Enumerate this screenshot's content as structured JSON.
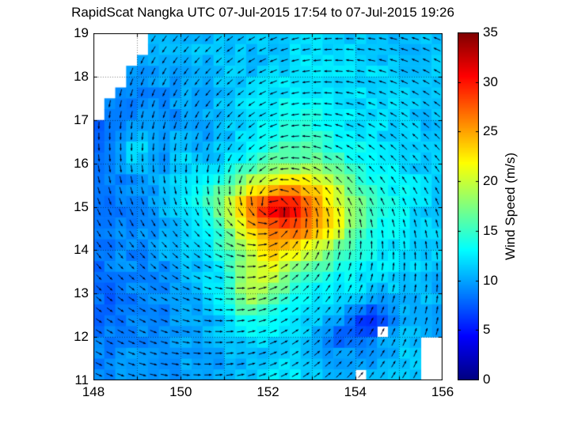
{
  "title": "RapidScat Nangka UTC 07-Jul-2015 17:54 to 07-Jul-2015 19:26",
  "colors": {
    "background": "#ffffff",
    "axis": "#000000",
    "arrow": "#00001e",
    "grid_dots": "rgba(0,0,0,0.5)",
    "no_data": "#ffffff"
  },
  "chart_data": {
    "type": "heatmap",
    "title": "RapidScat Nangka UTC 07-Jul-2015 17:54 to 07-Jul-2015 19:26",
    "xlabel": "",
    "ylabel": "",
    "x_axis": {
      "min": 148,
      "max": 156,
      "grid_step": 1,
      "tick_label_values": [
        148,
        150,
        152,
        154,
        156
      ]
    },
    "y_axis": {
      "min": 11,
      "max": 19,
      "grid_step": 1,
      "tick_label_values": [
        11,
        12,
        13,
        14,
        15,
        16,
        17,
        18,
        19
      ]
    },
    "colorbar": {
      "label": "Wind Speed (m/s)",
      "min": 0,
      "max": 35,
      "tick_values": [
        0,
        5,
        10,
        15,
        20,
        25,
        30,
        35
      ],
      "colormap": "jet"
    },
    "wind_speed_grid": {
      "units": "m/s",
      "lon_start": 148,
      "lon_step": 0.5,
      "lat_start": 19,
      "lat_step": -0.5,
      "values": [
        [
          null,
          null,
          null,
          11,
          11,
          11,
          11,
          11,
          11,
          11,
          12,
          12,
          11,
          11,
          11,
          11,
          11
        ],
        [
          null,
          null,
          10,
          10,
          10,
          11,
          11,
          11,
          11,
          12,
          12,
          12,
          12,
          11,
          11,
          11,
          11
        ],
        [
          null,
          9,
          10,
          10,
          10,
          10,
          11,
          11,
          12,
          12,
          12,
          12,
          12,
          12,
          11,
          11,
          11
        ],
        [
          null,
          9,
          9,
          9,
          10,
          10,
          11,
          12,
          12,
          13,
          13,
          13,
          12,
          12,
          12,
          11,
          11
        ],
        [
          8,
          8,
          9,
          9,
          9,
          10,
          11,
          12,
          13,
          14,
          14,
          13,
          12,
          12,
          12,
          11,
          11
        ],
        [
          8,
          9,
          12,
          10,
          12,
          10,
          11,
          12,
          14,
          15,
          15,
          14,
          13,
          12,
          12,
          11,
          11
        ],
        [
          9,
          9,
          12,
          9,
          12,
          11,
          12,
          14,
          16,
          17,
          17,
          16,
          14,
          13,
          12,
          11,
          11
        ],
        [
          8,
          9,
          9,
          10,
          12,
          14,
          16,
          20,
          22,
          24,
          23,
          20,
          16,
          14,
          13,
          12,
          11
        ],
        [
          8,
          8,
          9,
          10,
          12,
          14,
          18,
          26,
          31,
          33,
          27,
          22,
          18,
          14,
          13,
          12,
          11
        ],
        [
          8,
          9,
          9,
          10,
          11,
          13,
          16,
          23,
          27,
          28,
          26,
          22,
          17,
          14,
          13,
          12,
          11
        ],
        [
          8,
          9,
          9,
          10,
          11,
          12,
          15,
          18,
          24,
          23,
          20,
          17,
          14,
          13,
          12,
          12,
          11
        ],
        [
          8,
          9,
          9,
          9,
          10,
          11,
          13,
          19,
          21,
          17,
          15,
          14,
          13,
          12,
          12,
          11,
          11
        ],
        [
          8,
          8,
          9,
          9,
          10,
          11,
          14,
          20,
          18,
          15,
          13,
          12,
          12,
          11,
          11,
          11,
          10
        ],
        [
          8,
          8,
          9,
          9,
          10,
          10,
          12,
          15,
          14,
          13,
          12,
          11,
          7,
          6,
          10,
          10,
          10
        ],
        [
          9,
          9,
          9,
          9,
          10,
          10,
          11,
          12,
          12,
          12,
          11,
          8,
          7,
          null,
          11,
          null,
          null
        ],
        [
          9,
          9,
          10,
          9,
          10,
          10,
          10,
          11,
          11,
          12,
          11,
          10,
          10,
          10,
          11,
          null,
          null
        ],
        [
          9,
          10,
          10,
          9,
          10,
          10,
          10,
          11,
          12,
          13,
          12,
          11,
          11,
          11,
          null,
          null,
          null
        ]
      ]
    },
    "vector_field": {
      "pattern": "cyclonic",
      "rotation": "counterclockwise",
      "center_lon": 152.1,
      "center_lat": 15.0,
      "inflow_deg": 22,
      "arrow_spacing_deg": 0.25
    },
    "no_data_regions": {
      "top_left_edge": {
        "from_lon": 148,
        "from_lat": 16.9,
        "to_lon": 149.45,
        "to_lat": 19
      },
      "bottom_right_edge": {
        "from_lon": 155.45,
        "from_lat": 11,
        "to_lon": 156,
        "to_lat": 12.2
      },
      "cells": [
        [
          154.625,
          12.125
        ],
        [
          154.125,
          11.125
        ]
      ]
    }
  }
}
